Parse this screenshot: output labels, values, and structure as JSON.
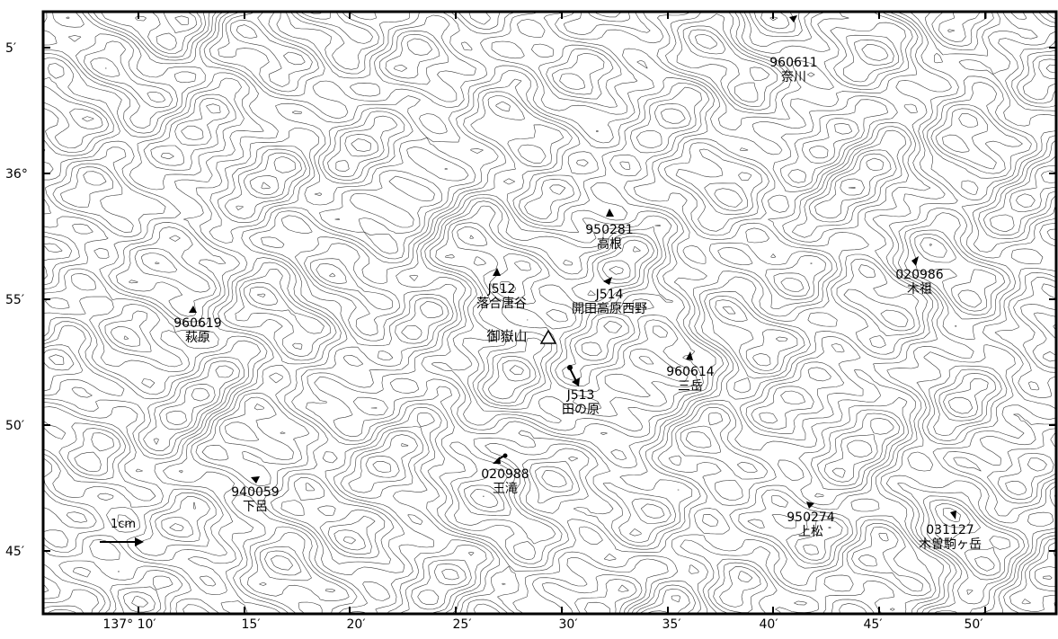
{
  "map": {
    "lat_ticks": [
      "5′",
      "36°",
      "55′",
      "50′",
      "45′"
    ],
    "lon_ticks": [
      "137° 10′",
      "15′",
      "20′",
      "25′",
      "30′",
      "35′",
      "40′",
      "45′",
      "50′"
    ],
    "summit": {
      "name": "御嶽山",
      "marker": "triangle-icon"
    },
    "scale_label": "1cm",
    "stations": [
      {
        "code": "960611",
        "name": "奈川"
      },
      {
        "code": "950281",
        "name": "高根"
      },
      {
        "code": "J512",
        "name": "落合唐谷"
      },
      {
        "code": "J514",
        "name": "開田高原西野"
      },
      {
        "code": "020986",
        "name": "木祖"
      },
      {
        "code": "960619",
        "name": "萩原"
      },
      {
        "code": "960614",
        "name": "三岳"
      },
      {
        "code": "J513",
        "name": "田の原"
      },
      {
        "code": "940059",
        "name": "下呂"
      },
      {
        "code": "020988",
        "name": "王滝"
      },
      {
        "code": "950274",
        "name": "上松"
      },
      {
        "code": "031127",
        "name": "木曽駒ヶ岳"
      }
    ]
  }
}
